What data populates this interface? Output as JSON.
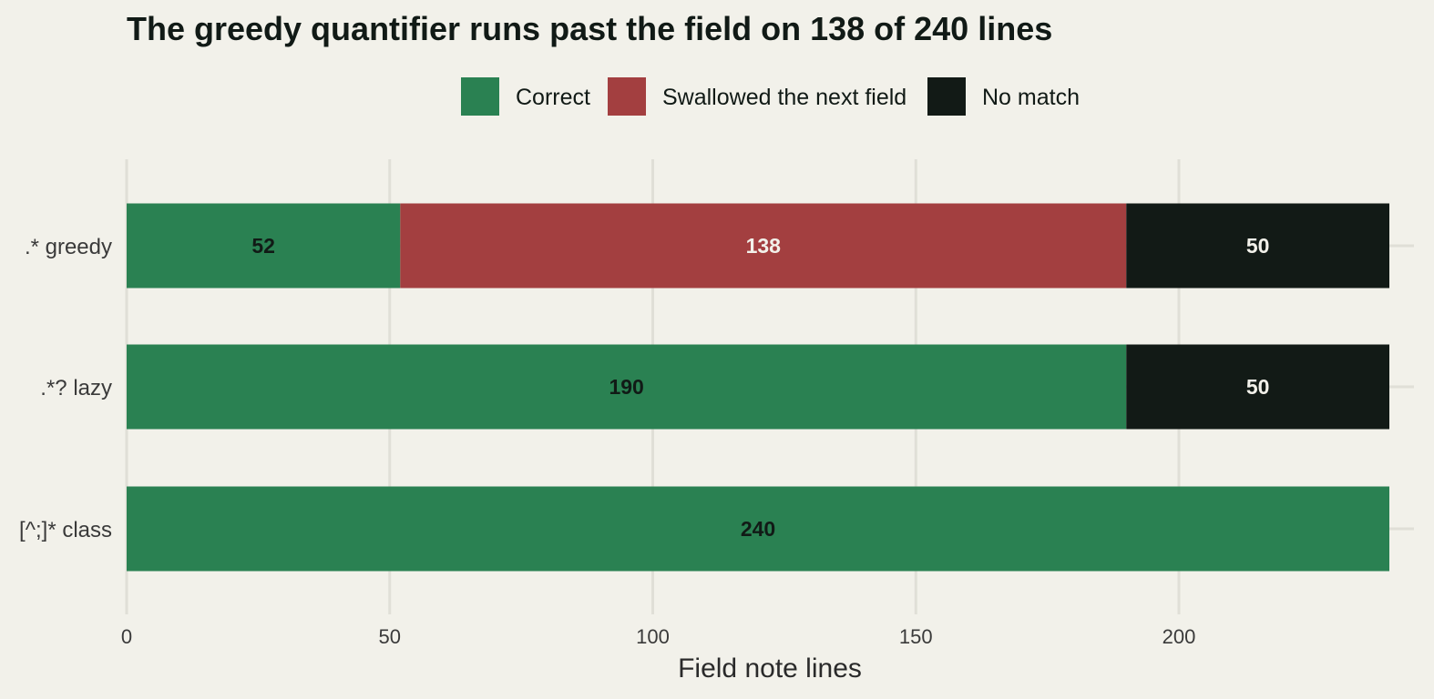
{
  "chart_data": {
    "type": "bar",
    "orientation": "horizontal",
    "stacked": true,
    "title": "The greedy quantifier runs past the field on 138 of 240 lines",
    "xlabel": "Field note lines",
    "ylabel": "",
    "xlim": [
      0,
      240
    ],
    "x_ticks": [
      "0",
      "50",
      "100",
      "150",
      "200"
    ],
    "grid": true,
    "legend_position": "top",
    "categories": [
      ".* greedy",
      ".*? lazy",
      "[^;]* class"
    ],
    "series": [
      {
        "name": "Correct",
        "color": "#2a8152",
        "label_color": "#111a16",
        "values": [
          52,
          190,
          240
        ]
      },
      {
        "name": "Swallowed the next field",
        "color": "#a33f40",
        "label_color": "#f2f1ea",
        "values": [
          138,
          0,
          0
        ]
      },
      {
        "name": "No match",
        "color": "#121a16",
        "label_color": "#f2f1ea",
        "values": [
          50,
          50,
          0
        ]
      }
    ],
    "background": "#f2f1ea",
    "grid_color": "#e0dfd7"
  }
}
